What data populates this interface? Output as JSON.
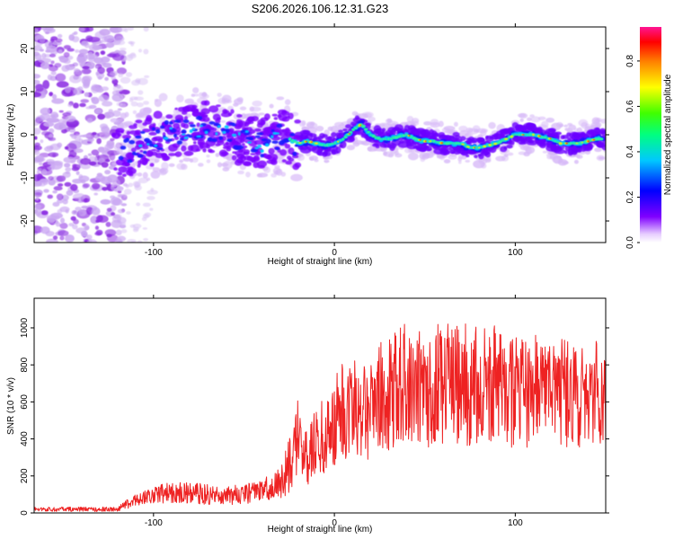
{
  "title": "S206.2026.106.12.31.G23",
  "chart_data": [
    {
      "type": "heatmap",
      "name": "spectrogram",
      "xlabel": "Height of straight line (km)",
      "ylabel": "Frequency (Hz)",
      "xlim": [
        -166,
        150
      ],
      "ylim": [
        -25,
        25
      ],
      "xticks": [
        -100,
        0,
        100
      ],
      "yticks": [
        -20,
        -10,
        0,
        10,
        20
      ],
      "ridge": {
        "x": [
          -115,
          -100,
          -90,
          -80,
          -70,
          -60,
          -50,
          -40,
          -30,
          -20,
          -15,
          -10,
          -5,
          0,
          5,
          10,
          15,
          20,
          25,
          30,
          35,
          40,
          45,
          50,
          55,
          60,
          65,
          70,
          75,
          80,
          85,
          90,
          95,
          100,
          105,
          110,
          115,
          120,
          125,
          130,
          135,
          140,
          145,
          148
        ],
        "y": [
          -4,
          -1,
          1,
          1,
          2,
          0,
          -1,
          -2,
          0,
          -2,
          -1.5,
          -2,
          -2.5,
          -2,
          -1,
          1,
          2.5,
          0,
          -1,
          -1,
          -0.5,
          0,
          -1,
          -1.5,
          -1.5,
          -2,
          -2,
          -2,
          -3,
          -3,
          -2.5,
          -2,
          -1,
          0,
          0,
          0,
          -0.5,
          -1,
          -2,
          -2,
          -2,
          -1.5,
          -1,
          -1
        ]
      },
      "colorbar": {
        "label": "Normalized spectral amplitude",
        "range": [
          0,
          0.95
        ],
        "ticks": [
          0.0,
          0.2,
          0.4,
          0.6,
          0.8
        ]
      }
    },
    {
      "type": "line",
      "name": "snr",
      "xlabel": "Height of straight line (km)",
      "ylabel": "SNR (10 * v/v)",
      "xlim": [
        -166,
        150
      ],
      "ylim": [
        0,
        1160
      ],
      "xticks": [
        -100,
        0,
        100
      ],
      "yticks": [
        0,
        200,
        400,
        600,
        800,
        1000
      ],
      "series": [
        {
          "name": "SNR",
          "color": "#ee2222",
          "x": [
            -166,
            -150,
            -140,
            -130,
            -120,
            -110,
            -100,
            -90,
            -80,
            -70,
            -60,
            -50,
            -40,
            -30,
            -25,
            -20,
            -15,
            -10,
            -5,
            0,
            5,
            10,
            15,
            20,
            25,
            30,
            35,
            40,
            45,
            50,
            55,
            60,
            65,
            70,
            75,
            80,
            85,
            90,
            95,
            100,
            105,
            110,
            115,
            120,
            125,
            130,
            135,
            140,
            145,
            150
          ],
          "mean": [
            20,
            20,
            20,
            20,
            20,
            70,
            100,
            110,
            110,
            100,
            95,
            100,
            120,
            160,
            250,
            400,
            330,
            370,
            420,
            470,
            560,
            570,
            580,
            580,
            610,
            640,
            700,
            700,
            680,
            670,
            690,
            700,
            700,
            700,
            690,
            690,
            710,
            680,
            670,
            650,
            650,
            660,
            690,
            700,
            660,
            630,
            620,
            640,
            650,
            640
          ],
          "spread": [
            12,
            12,
            12,
            12,
            12,
            35,
            50,
            55,
            60,
            55,
            50,
            55,
            60,
            90,
            150,
            230,
            180,
            190,
            220,
            260,
            280,
            290,
            290,
            300,
            320,
            330,
            340,
            330,
            320,
            320,
            330,
            330,
            320,
            330,
            330,
            330,
            330,
            320,
            320,
            300,
            300,
            300,
            310,
            300,
            300,
            290,
            280,
            280,
            280,
            280
          ]
        }
      ]
    }
  ]
}
